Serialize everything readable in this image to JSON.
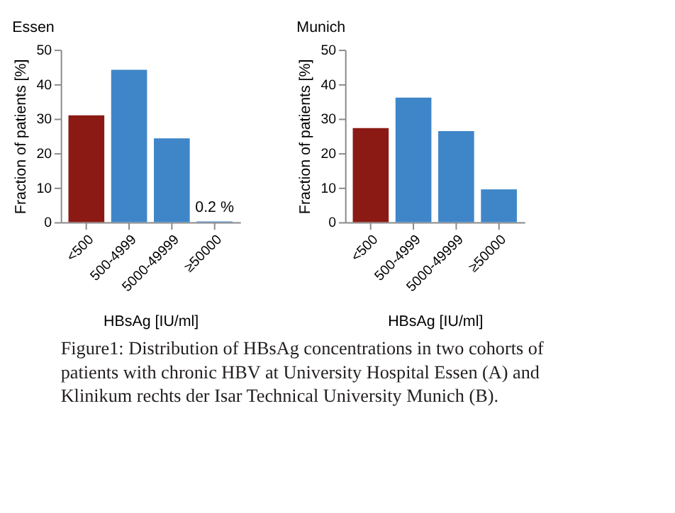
{
  "chart_data": [
    {
      "type": "bar",
      "title": "Essen",
      "xlabel": "HBsAg [IU/ml]",
      "ylabel": "Fraction of patients [%]",
      "categories": [
        "<500",
        "500-4999",
        "5000-49999",
        "≥50000"
      ],
      "values": [
        31,
        44.2,
        24.3,
        0.2
      ],
      "value_labels": [
        null,
        null,
        null,
        "0.2 %"
      ],
      "colors": [
        "#8b1a14",
        "#3f86c8",
        "#3f86c8",
        "#3f86c8"
      ],
      "ylim": [
        0,
        50
      ],
      "yticks": [
        0,
        10,
        20,
        30,
        40,
        50
      ],
      "grid": false,
      "annotations": [
        "Figure1: Distribution of HBsAg concentrations in two cohorts of patients with chronic HBV at University Hospital Essen (A) and Klinikum rechts der Isar Technical University Munich (B)."
      ]
    },
    {
      "type": "bar",
      "title": "Munich",
      "xlabel": "HBsAg [IU/ml]",
      "ylabel": "Fraction of patients [%]",
      "categories": [
        "<500",
        "500-4999",
        "5000-49999",
        "≥50000"
      ],
      "values": [
        27.3,
        36.1,
        26.4,
        9.5
      ],
      "colors": [
        "#8b1a14",
        "#3f86c8",
        "#3f86c8",
        "#3f86c8"
      ],
      "ylim": [
        0,
        50
      ],
      "yticks": [
        0,
        10,
        20,
        30,
        40,
        50
      ],
      "grid": false
    }
  ]
}
